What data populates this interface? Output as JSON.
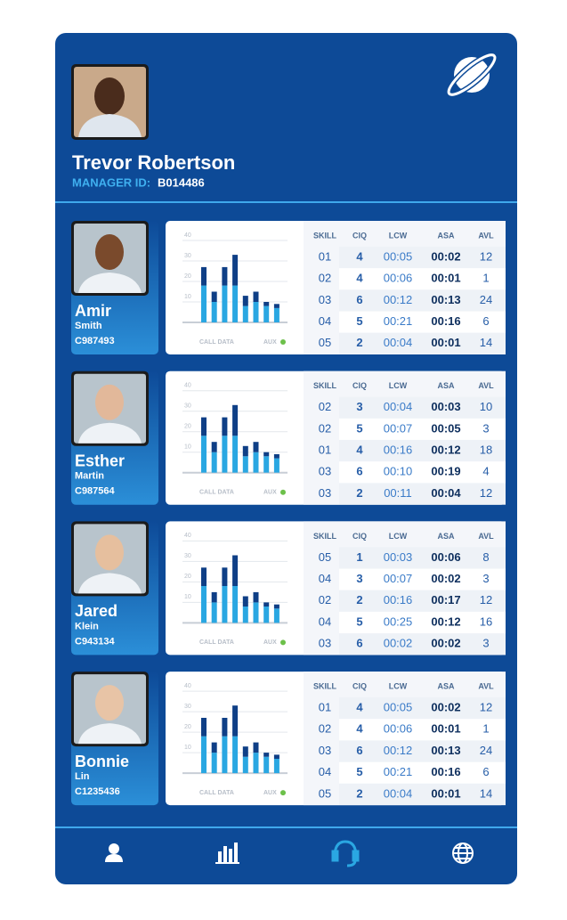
{
  "manager": {
    "name": "Trevor Robertson",
    "id_label": "MANAGER ID:",
    "id": "B014486"
  },
  "table_headers": [
    "SKILL",
    "CIQ",
    "LCW",
    "ASA",
    "AVL"
  ],
  "chart_labels": {
    "left": "CALL DATA",
    "right": "AUX"
  },
  "agents": [
    {
      "first": "Amir",
      "last": "Smith",
      "id": "C987493",
      "rows": [
        [
          "01",
          "4",
          "00:05",
          "00:02",
          "12"
        ],
        [
          "02",
          "4",
          "00:06",
          "00:01",
          "1"
        ],
        [
          "03",
          "6",
          "00:12",
          "00:13",
          "24"
        ],
        [
          "04",
          "5",
          "00:21",
          "00:16",
          "6"
        ],
        [
          "05",
          "2",
          "00:04",
          "00:01",
          "14"
        ]
      ],
      "chart": {
        "ylim": [
          0,
          40
        ],
        "yticks": [
          10,
          20,
          30,
          40
        ],
        "series": [
          {
            "color": "#2aa7e2",
            "values": [
              18,
              10,
              18,
              18,
              8,
              10,
              8,
              7
            ]
          },
          {
            "color": "#0f3f86",
            "values": [
              9,
              5,
              9,
              15,
              5,
              5,
              2,
              2
            ]
          }
        ]
      }
    },
    {
      "first": "Esther",
      "last": "Martin",
      "id": "C987564",
      "rows": [
        [
          "02",
          "3",
          "00:04",
          "00:03",
          "10"
        ],
        [
          "02",
          "5",
          "00:07",
          "00:05",
          "3"
        ],
        [
          "01",
          "4",
          "00:16",
          "00:12",
          "18"
        ],
        [
          "03",
          "6",
          "00:10",
          "00:19",
          "4"
        ],
        [
          "03",
          "2",
          "00:11",
          "00:04",
          "12"
        ]
      ],
      "chart": {
        "ylim": [
          0,
          40
        ],
        "yticks": [
          10,
          20,
          30,
          40
        ],
        "series": [
          {
            "color": "#2aa7e2",
            "values": [
              18,
              10,
              18,
              18,
              8,
              10,
              8,
              7
            ]
          },
          {
            "color": "#0f3f86",
            "values": [
              9,
              5,
              9,
              15,
              5,
              5,
              2,
              2
            ]
          }
        ]
      }
    },
    {
      "first": "Jared",
      "last": "Klein",
      "id": "C943134",
      "rows": [
        [
          "05",
          "1",
          "00:03",
          "00:06",
          "8"
        ],
        [
          "04",
          "3",
          "00:07",
          "00:02",
          "3"
        ],
        [
          "02",
          "2",
          "00:16",
          "00:17",
          "12"
        ],
        [
          "04",
          "5",
          "00:25",
          "00:12",
          "16"
        ],
        [
          "03",
          "6",
          "00:02",
          "00:02",
          "3"
        ]
      ],
      "chart": {
        "ylim": [
          0,
          40
        ],
        "yticks": [
          10,
          20,
          30,
          40
        ],
        "series": [
          {
            "color": "#2aa7e2",
            "values": [
              18,
              10,
              18,
              18,
              8,
              10,
              8,
              7
            ]
          },
          {
            "color": "#0f3f86",
            "values": [
              9,
              5,
              9,
              15,
              5,
              5,
              2,
              2
            ]
          }
        ]
      }
    },
    {
      "first": "Bonnie",
      "last": "Lin",
      "id": "C1235436",
      "rows": [
        [
          "01",
          "4",
          "00:05",
          "00:02",
          "12"
        ],
        [
          "02",
          "4",
          "00:06",
          "00:01",
          "1"
        ],
        [
          "03",
          "6",
          "00:12",
          "00:13",
          "24"
        ],
        [
          "04",
          "5",
          "00:21",
          "00:16",
          "6"
        ],
        [
          "05",
          "2",
          "00:04",
          "00:01",
          "14"
        ]
      ],
      "chart": {
        "ylim": [
          0,
          40
        ],
        "yticks": [
          10,
          20,
          30,
          40
        ],
        "series": [
          {
            "color": "#2aa7e2",
            "values": [
              18,
              10,
              18,
              18,
              8,
              10,
              8,
              7
            ]
          },
          {
            "color": "#0f3f86",
            "values": [
              9,
              5,
              9,
              15,
              5,
              5,
              2,
              2
            ]
          }
        ]
      }
    }
  ]
}
